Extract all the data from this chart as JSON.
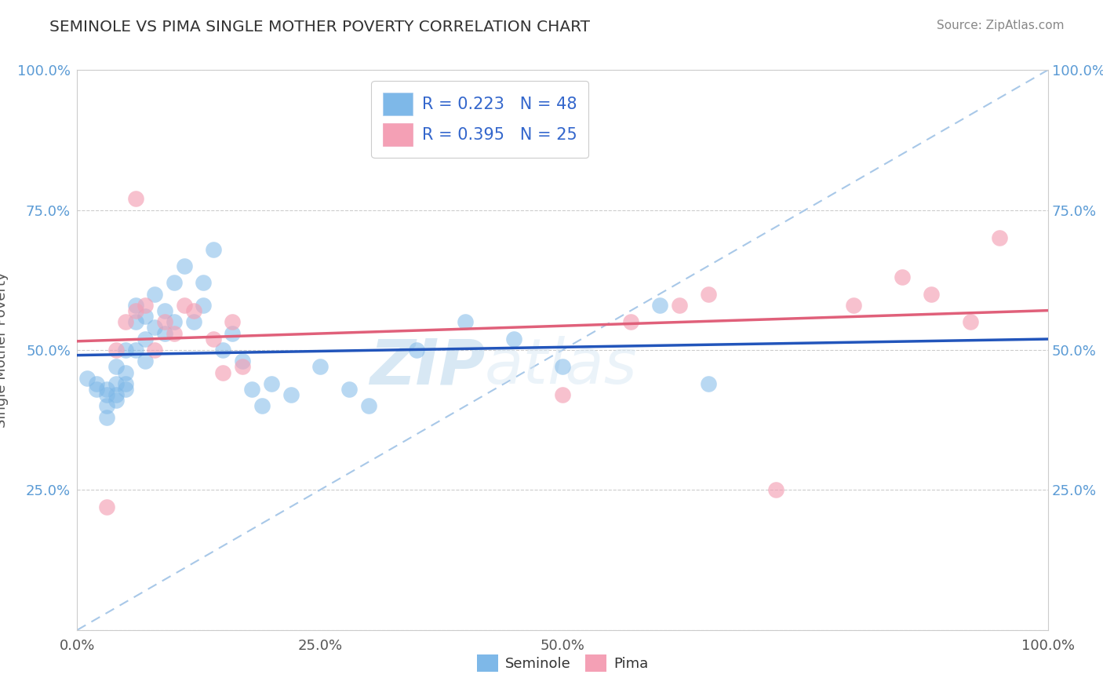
{
  "title": "SEMINOLE VS PIMA SINGLE MOTHER POVERTY CORRELATION CHART",
  "source": "Source: ZipAtlas.com",
  "ylabel": "Single Mother Poverty",
  "xlim": [
    0.0,
    1.0
  ],
  "ylim": [
    0.0,
    1.0
  ],
  "xticks": [
    0.0,
    0.25,
    0.5,
    0.75,
    1.0
  ],
  "yticks": [
    0.0,
    0.25,
    0.5,
    0.75,
    1.0
  ],
  "xtick_labels": [
    "0.0%",
    "25.0%",
    "50.0%",
    "",
    "100.0%"
  ],
  "ytick_labels": [
    "",
    "25.0%",
    "50.0%",
    "75.0%",
    "100.0%"
  ],
  "seminole_color": "#7eb8e8",
  "pima_color": "#f4a0b5",
  "regression_seminole_color": "#2255bb",
  "regression_pima_color": "#e0607a",
  "dashed_line_color": "#a8c8e8",
  "legend_text_color": "#3366cc",
  "title_color": "#333333",
  "seminole_R": "0.223",
  "seminole_N": "48",
  "pima_R": "0.395",
  "pima_N": "25",
  "watermark_zip": "ZIP",
  "watermark_atlas": "atlas",
  "background_color": "#ffffff",
  "grid_color": "#cccccc",
  "seminole_x": [
    0.01,
    0.02,
    0.02,
    0.03,
    0.03,
    0.03,
    0.03,
    0.04,
    0.04,
    0.04,
    0.04,
    0.05,
    0.05,
    0.05,
    0.05,
    0.06,
    0.06,
    0.06,
    0.07,
    0.07,
    0.07,
    0.08,
    0.08,
    0.09,
    0.09,
    0.1,
    0.1,
    0.11,
    0.12,
    0.13,
    0.13,
    0.14,
    0.15,
    0.16,
    0.17,
    0.18,
    0.19,
    0.2,
    0.22,
    0.25,
    0.28,
    0.3,
    0.35,
    0.4,
    0.45,
    0.5,
    0.6,
    0.65
  ],
  "seminole_y": [
    0.45,
    0.44,
    0.43,
    0.4,
    0.42,
    0.38,
    0.43,
    0.41,
    0.44,
    0.47,
    0.42,
    0.46,
    0.5,
    0.44,
    0.43,
    0.55,
    0.58,
    0.5,
    0.56,
    0.52,
    0.48,
    0.54,
    0.6,
    0.57,
    0.53,
    0.62,
    0.55,
    0.65,
    0.55,
    0.58,
    0.62,
    0.68,
    0.5,
    0.53,
    0.48,
    0.43,
    0.4,
    0.44,
    0.42,
    0.47,
    0.43,
    0.4,
    0.5,
    0.55,
    0.52,
    0.47,
    0.58,
    0.44
  ],
  "pima_x": [
    0.03,
    0.04,
    0.05,
    0.06,
    0.06,
    0.07,
    0.08,
    0.09,
    0.1,
    0.11,
    0.12,
    0.14,
    0.15,
    0.16,
    0.17,
    0.5,
    0.57,
    0.62,
    0.65,
    0.72,
    0.8,
    0.85,
    0.88,
    0.92,
    0.95
  ],
  "pima_y": [
    0.22,
    0.5,
    0.55,
    0.77,
    0.57,
    0.58,
    0.5,
    0.55,
    0.53,
    0.58,
    0.57,
    0.52,
    0.46,
    0.55,
    0.47,
    0.42,
    0.55,
    0.58,
    0.6,
    0.25,
    0.58,
    0.63,
    0.6,
    0.55,
    0.7
  ]
}
